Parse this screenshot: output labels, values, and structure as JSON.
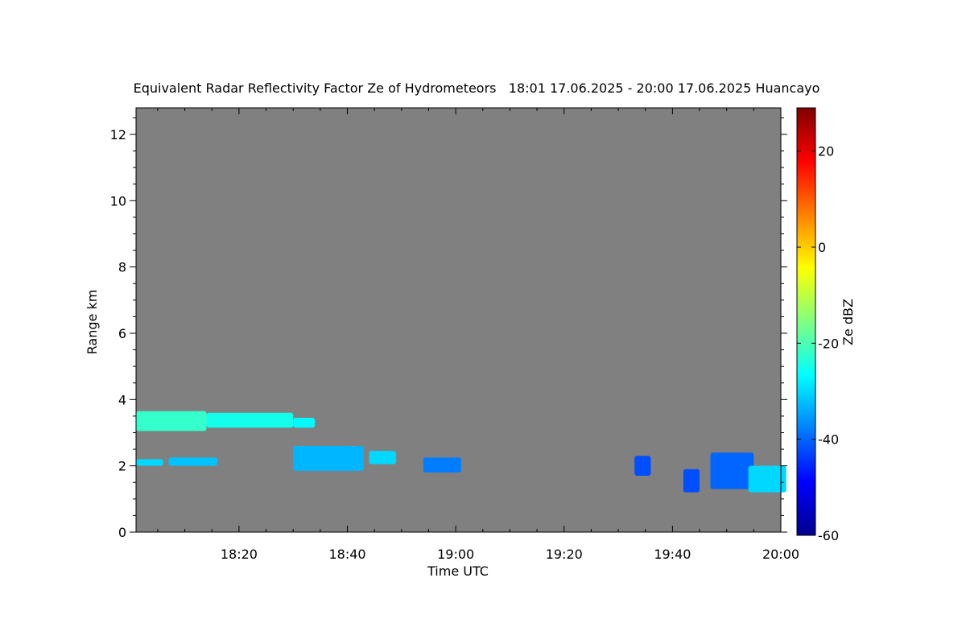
{
  "chart_data": {
    "type": "heatmap",
    "title": "Equivalent Radar Reflectivity Factor Ze of Hydrometeors   18:01 17.06.2025 - 20:00 17.06.2025 Huancayo",
    "xlabel": "Time UTC",
    "ylabel": "Range km",
    "colorbar_label": "Ze dBZ",
    "xlim": [
      "18:01",
      "20:00"
    ],
    "x_ticks": [
      "18:20",
      "18:40",
      "19:00",
      "19:20",
      "19:40",
      "20:00"
    ],
    "ylim": [
      0,
      12.8
    ],
    "y_ticks": [
      0,
      2,
      4,
      6,
      8,
      10,
      12
    ],
    "clim": [
      -60,
      29
    ],
    "colorbar_ticks": [
      20,
      0,
      -20,
      -40,
      -60
    ],
    "colormap": [
      "#00008f",
      "#0000ff",
      "#0080ff",
      "#00ffff",
      "#80ff80",
      "#ffff00",
      "#ff8000",
      "#ff0000",
      "#800000"
    ],
    "no_data_color": "#808080",
    "echoes": [
      {
        "start": "18:01",
        "end": "18:14",
        "base_km": 3.05,
        "top_km": 3.65,
        "ze_dbz": -22
      },
      {
        "start": "18:14",
        "end": "18:30",
        "base_km": 3.15,
        "top_km": 3.6,
        "ze_dbz": -25
      },
      {
        "start": "18:30",
        "end": "18:34",
        "base_km": 3.15,
        "top_km": 3.45,
        "ze_dbz": -27
      },
      {
        "start": "18:01",
        "end": "18:06",
        "base_km": 2.0,
        "top_km": 2.2,
        "ze_dbz": -30
      },
      {
        "start": "18:07",
        "end": "18:16",
        "base_km": 2.0,
        "top_km": 2.25,
        "ze_dbz": -32
      },
      {
        "start": "18:30",
        "end": "18:43",
        "base_km": 1.85,
        "top_km": 2.6,
        "ze_dbz": -33
      },
      {
        "start": "18:44",
        "end": "18:49",
        "base_km": 2.05,
        "top_km": 2.45,
        "ze_dbz": -30
      },
      {
        "start": "18:54",
        "end": "19:01",
        "base_km": 1.8,
        "top_km": 2.25,
        "ze_dbz": -38
      },
      {
        "start": "19:33",
        "end": "19:36",
        "base_km": 1.7,
        "top_km": 2.3,
        "ze_dbz": -42
      },
      {
        "start": "19:42",
        "end": "19:45",
        "base_km": 1.2,
        "top_km": 1.9,
        "ze_dbz": -42
      },
      {
        "start": "19:47",
        "end": "19:55",
        "base_km": 1.3,
        "top_km": 2.4,
        "ze_dbz": -40
      },
      {
        "start": "19:54",
        "end": "20:01",
        "base_km": 1.2,
        "top_km": 2.0,
        "ze_dbz": -30
      }
    ]
  }
}
